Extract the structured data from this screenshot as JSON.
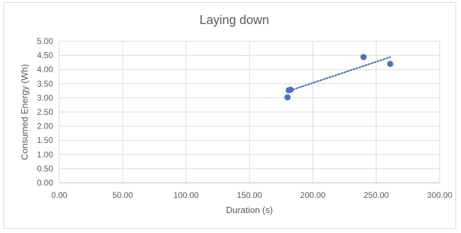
{
  "chart_data": {
    "type": "scatter",
    "title": "Laying down",
    "xlabel": "Duration (s)",
    "ylabel": "Consumed Energy  (Wh)",
    "xlim": [
      0,
      300
    ],
    "ylim": [
      0,
      5
    ],
    "x_ticks": [
      "0.00",
      "50.00",
      "100.00",
      "150.00",
      "200.00",
      "250.00",
      "300.00"
    ],
    "y_ticks": [
      "0.00",
      "0.50",
      "1.00",
      "1.50",
      "2.00",
      "2.50",
      "3.00",
      "3.50",
      "4.00",
      "4.50",
      "5.00"
    ],
    "grid": true,
    "legend": "none",
    "marker_color": "#4472c4",
    "trendline_color": "#4472c4",
    "trendline_style": "dotted",
    "series": [
      {
        "points": [
          {
            "x": 180.0,
            "y": 3.02
          },
          {
            "x": 181.0,
            "y": 3.27
          },
          {
            "x": 182.5,
            "y": 3.29
          },
          {
            "x": 240.0,
            "y": 4.44
          },
          {
            "x": 261.0,
            "y": 4.2
          }
        ]
      }
    ],
    "trendline": {
      "x": [
        182.0,
        261.0
      ],
      "y": [
        3.26,
        4.44
      ]
    }
  }
}
